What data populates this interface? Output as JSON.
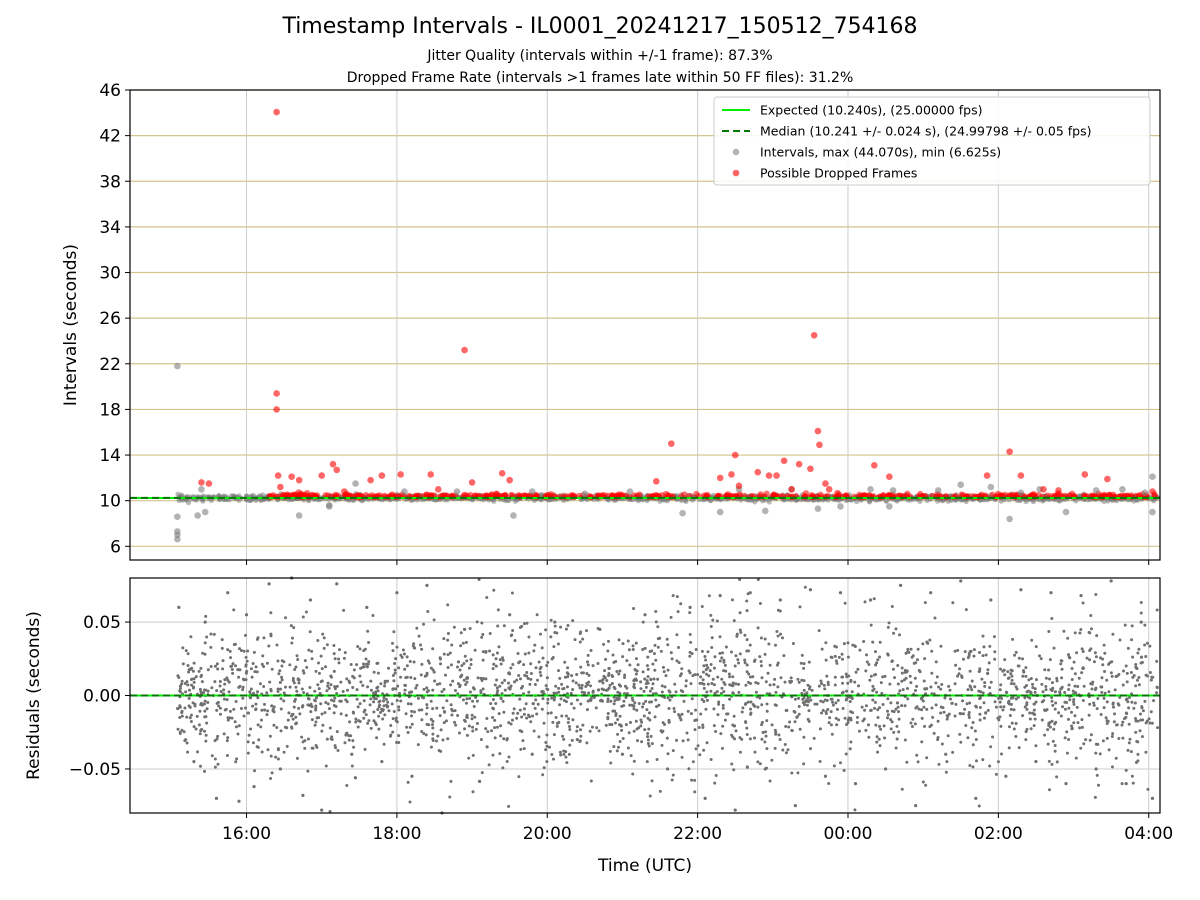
{
  "chart_data": [
    {
      "type": "scatter",
      "title": "Timestamp Intervals - IL0001_20241217_150512_754168",
      "subtitle": [
        "Jitter Quality (intervals within +/-1 frame): 87.3%",
        "Dropped Frame Rate (intervals >1 frames late within 50 FF files): 31.2%"
      ],
      "xlabel": "",
      "ylabel": "Intervals (seconds)",
      "x_unit": "hours UTC from 00:00 on 2024-12-17",
      "xlim": [
        14.45,
        28.15
      ],
      "ylim": [
        4.8,
        46
      ],
      "yticks": [
        6,
        10,
        14,
        18,
        22,
        26,
        30,
        34,
        38,
        42,
        46
      ],
      "ytick_labels": [
        "6",
        "10",
        "14",
        "18",
        "22",
        "26",
        "30",
        "34",
        "38",
        "42",
        "46"
      ],
      "grid": true,
      "legend_position": "top-right",
      "colors": {
        "expected": "#00ee00",
        "median": "#007700",
        "intervals": "#808080",
        "dropped": "#ff0000",
        "hgrid": "#d4c38a",
        "vgrid": "#cccccc"
      },
      "series": [
        {
          "name": "Expected (10.240s), (25.00000 fps)",
          "kind": "hline",
          "y": 10.24
        },
        {
          "name": "Median (10.241 +/- 0.024 s), (24.99798 +/- 0.05 fps)",
          "kind": "hline-dashed",
          "y": 10.241
        },
        {
          "name": "Intervals, max (44.070s), min (6.625s)",
          "kind": "scatter",
          "x": [
            15.08,
            15.08,
            15.08,
            15.08,
            15.08,
            15.35,
            15.45,
            15.4,
            16.7,
            17.1,
            17.45,
            18.1,
            18.8,
            19.55,
            19.8,
            20.5,
            21.1,
            21.8,
            22.3,
            22.55,
            22.9,
            23.25,
            23.6,
            23.9,
            24.3,
            24.6,
            25.2,
            25.5,
            25.9,
            26.15,
            26.55,
            26.9,
            27.3,
            27.65,
            27.95,
            28.05,
            28.05,
            17.1,
            24.55,
            26.3
          ],
          "y": [
            21.8,
            8.6,
            7.3,
            7.0,
            6.625,
            8.7,
            9.0,
            11.0,
            8.7,
            9.5,
            11.5,
            10.8,
            10.8,
            8.7,
            10.8,
            10.6,
            10.8,
            8.9,
            9.0,
            11.0,
            9.1,
            11.0,
            9.3,
            9.5,
            11.0,
            10.9,
            10.9,
            11.4,
            11.2,
            8.4,
            11.0,
            9.0,
            10.9,
            11.0,
            10.7,
            12.1,
            9.0,
            9.6,
            9.5,
            10.7
          ]
        },
        {
          "name": "Possible Dropped Frames",
          "kind": "scatter",
          "x": [
            15.4,
            15.5,
            16.4,
            16.4,
            16.4,
            16.42,
            16.45,
            16.6,
            16.7,
            17.0,
            17.15,
            17.2,
            17.3,
            17.65,
            17.8,
            18.05,
            18.45,
            18.55,
            18.9,
            19.0,
            19.4,
            19.5,
            21.45,
            21.65,
            22.3,
            22.45,
            22.5,
            22.55,
            22.8,
            22.95,
            23.05,
            23.15,
            23.25,
            23.35,
            23.5,
            23.55,
            23.6,
            23.62,
            23.7,
            23.75,
            24.35,
            24.55,
            25.85,
            26.15,
            26.3,
            26.6,
            26.8,
            27.15,
            27.45,
            28.05
          ],
          "y": [
            11.6,
            11.5,
            44.07,
            19.4,
            18.0,
            12.2,
            11.2,
            12.1,
            11.8,
            12.2,
            13.2,
            12.7,
            10.8,
            11.8,
            12.2,
            12.3,
            12.3,
            11.0,
            23.2,
            11.6,
            12.4,
            11.8,
            11.7,
            15.0,
            12.0,
            12.3,
            14.0,
            11.3,
            12.5,
            12.2,
            12.2,
            13.5,
            11.0,
            13.2,
            12.8,
            24.5,
            16.1,
            14.9,
            11.5,
            11.0,
            13.1,
            12.1,
            12.2,
            14.3,
            12.2,
            11.0,
            10.9,
            12.3,
            11.9,
            10.8
          ]
        }
      ]
    },
    {
      "type": "scatter",
      "title": "",
      "xlabel": "Time (UTC)",
      "ylabel": "Residuals (seconds)",
      "xlim": [
        14.45,
        28.15
      ],
      "ylim": [
        -0.08,
        0.08
      ],
      "yticks": [
        -0.05,
        0.0,
        0.05
      ],
      "ytick_labels": [
        "−0.05",
        "0.00",
        "0.05"
      ],
      "xticks": [
        16,
        18,
        20,
        22,
        24,
        26,
        28
      ],
      "xtick_labels": [
        "16:00",
        "18:00",
        "20:00",
        "22:00",
        "00:00",
        "02:00",
        "04:00"
      ],
      "grid": true,
      "colors": {
        "points": "#707070",
        "zero_expected": "#00ee00",
        "zero_median": "#007700",
        "grid": "#cccccc"
      },
      "series": [
        {
          "name": "",
          "kind": "hline",
          "y": 0.0
        },
        {
          "name": "",
          "kind": "scatter",
          "x": [
            15.1,
            15.3,
            15.45,
            15.6,
            15.75,
            15.9,
            16.0,
            16.1,
            16.3,
            16.45,
            16.6,
            16.75,
            16.85,
            17.0,
            17.2,
            17.4,
            17.6,
            17.8,
            18.0,
            18.2,
            18.4,
            18.6,
            18.9,
            19.2,
            19.5,
            19.8,
            20.1,
            20.4,
            20.7,
            21.0,
            21.3,
            21.6,
            21.9,
            22.1,
            22.3,
            22.5,
            22.7,
            22.9,
            23.1,
            23.3,
            23.5,
            23.7,
            23.9,
            24.1,
            24.3,
            24.5,
            24.7,
            24.9,
            25.1,
            25.3,
            25.5,
            25.7,
            25.9,
            26.1,
            26.3,
            26.5,
            26.7,
            26.9,
            27.1,
            27.3,
            27.5,
            27.7,
            27.9,
            28.05
          ],
          "y": [
            0.06,
            -0.045,
            0.05,
            -0.07,
            0.07,
            -0.072,
            0.055,
            -0.062,
            0.076,
            -0.05,
            0.08,
            -0.068,
            0.065,
            -0.078,
            0.076,
            -0.04,
            0.06,
            -0.045,
            0.07,
            -0.055,
            0.075,
            -0.08,
            0.045,
            -0.035,
            0.055,
            -0.04,
            0.05,
            -0.03,
            0.045,
            -0.04,
            0.055,
            -0.05,
            0.06,
            -0.07,
            0.068,
            -0.078,
            0.07,
            -0.05,
            0.065,
            -0.075,
            0.072,
            -0.055,
            0.07,
            -0.06,
            0.065,
            -0.05,
            0.075,
            -0.075,
            0.07,
            -0.04,
            0.078,
            -0.07,
            0.065,
            -0.055,
            0.072,
            -0.045,
            0.07,
            -0.06,
            0.068,
            -0.05,
            0.078,
            -0.06,
            0.05,
            -0.07
          ]
        }
      ]
    }
  ]
}
